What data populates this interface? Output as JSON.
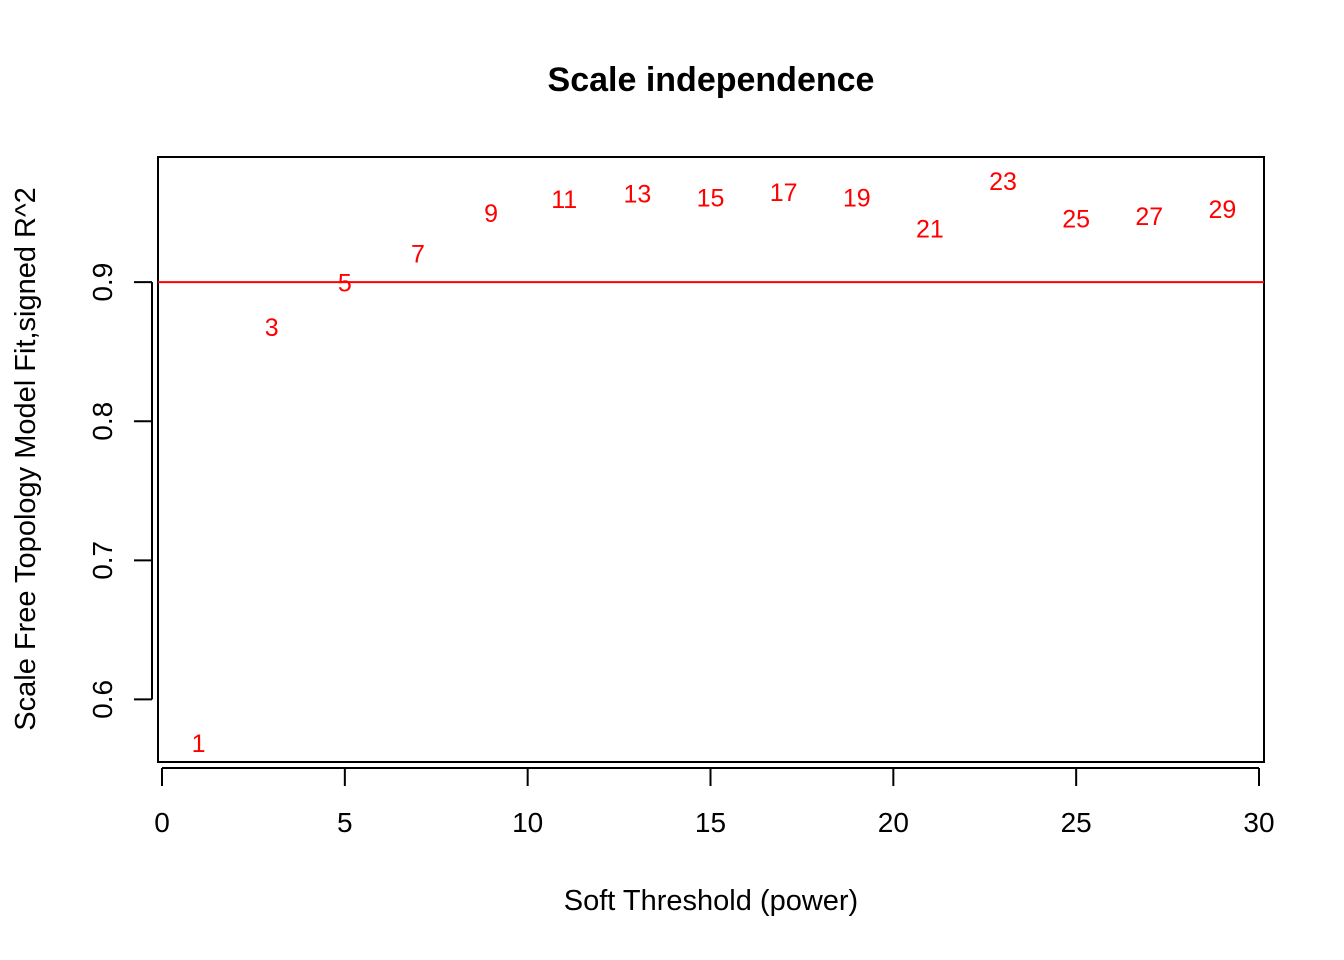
{
  "chart_data": {
    "type": "scatter",
    "title": "Scale independence",
    "xlabel": "Soft Threshold (power)",
    "ylabel": "Scale Free Topology Model Fit,signed R^2",
    "xlim": [
      0,
      30
    ],
    "ylim": [
      0.555,
      0.99
    ],
    "x_ticks": [
      0,
      5,
      10,
      15,
      20,
      25,
      30
    ],
    "y_ticks": [
      0.6,
      0.7,
      0.8,
      0.9
    ],
    "x_tick_labels": [
      "0",
      "5",
      "10",
      "15",
      "20",
      "25",
      "30"
    ],
    "y_tick_labels": [
      "0.6",
      "0.7",
      "0.8",
      "0.9"
    ],
    "point_color": "#ff0000",
    "points": [
      {
        "x": 1,
        "y": 0.568,
        "label": "1"
      },
      {
        "x": 3,
        "y": 0.867,
        "label": "3"
      },
      {
        "x": 5,
        "y": 0.899,
        "label": "5"
      },
      {
        "x": 7,
        "y": 0.92,
        "label": "7"
      },
      {
        "x": 9,
        "y": 0.949,
        "label": "9"
      },
      {
        "x": 11,
        "y": 0.959,
        "label": "11"
      },
      {
        "x": 13,
        "y": 0.963,
        "label": "13"
      },
      {
        "x": 15,
        "y": 0.96,
        "label": "15"
      },
      {
        "x": 17,
        "y": 0.964,
        "label": "17"
      },
      {
        "x": 19,
        "y": 0.96,
        "label": "19"
      },
      {
        "x": 21,
        "y": 0.938,
        "label": "21"
      },
      {
        "x": 23,
        "y": 0.972,
        "label": "23"
      },
      {
        "x": 25,
        "y": 0.945,
        "label": "25"
      },
      {
        "x": 27,
        "y": 0.947,
        "label": "27"
      },
      {
        "x": 29,
        "y": 0.952,
        "label": "29"
      }
    ],
    "reference_line": {
      "y": 0.9,
      "color": "#ff0000"
    },
    "grid": false,
    "legend": "none"
  }
}
